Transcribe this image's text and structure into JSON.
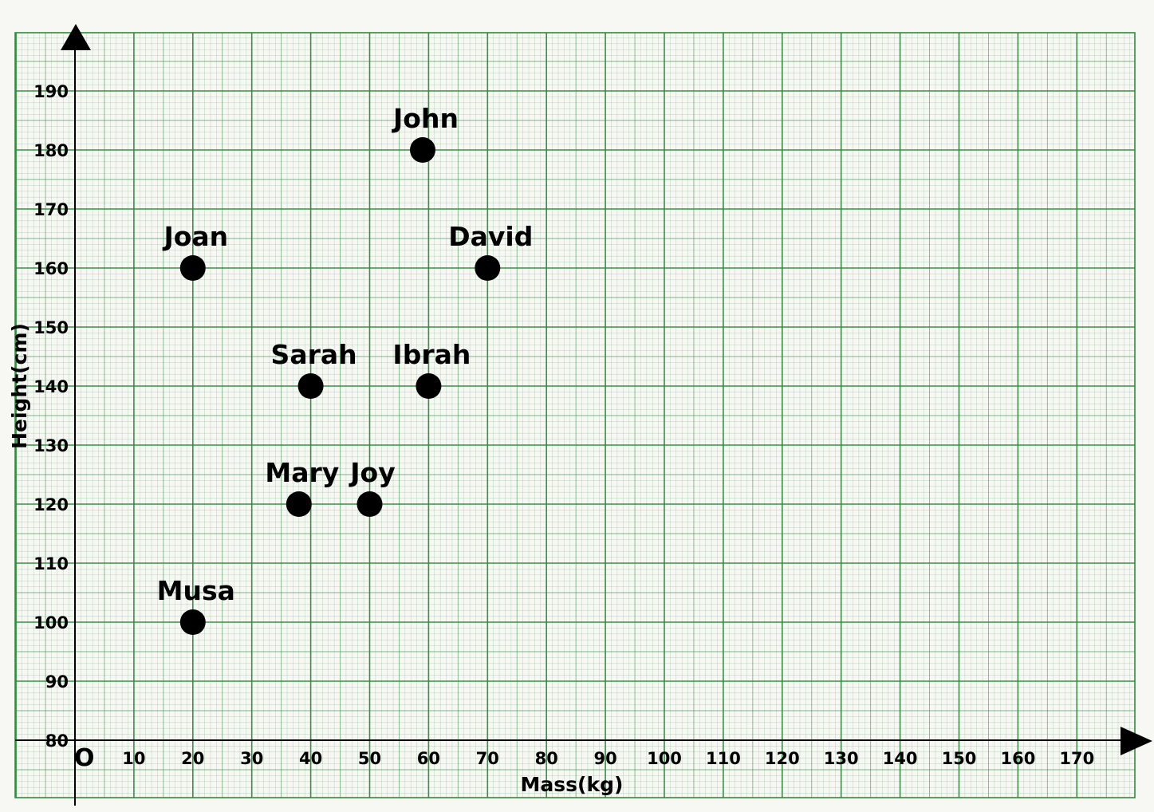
{
  "chart_data": {
    "type": "scatter",
    "title": "",
    "xlabel": "Mass(kg)",
    "ylabel": "Height(cm)",
    "origin_label": "O",
    "xlim": [
      0,
      180
    ],
    "ylim": [
      80,
      200
    ],
    "x_ticks": [
      10,
      20,
      30,
      40,
      50,
      60,
      70,
      80,
      90,
      100,
      110,
      120,
      130,
      140,
      150,
      160,
      170
    ],
    "y_ticks": [
      80,
      90,
      100,
      110,
      120,
      130,
      140,
      150,
      160,
      170,
      180,
      190
    ],
    "grid": true,
    "grid_color": "#2f8a3d",
    "paper_color": "#f7f7f4",
    "points": [
      {
        "label": "John",
        "x": 59,
        "y": 180
      },
      {
        "label": "Joan",
        "x": 20,
        "y": 160
      },
      {
        "label": "David",
        "x": 70,
        "y": 160
      },
      {
        "label": "Sarah",
        "x": 40,
        "y": 140
      },
      {
        "label": "Ibrah",
        "x": 60,
        "y": 140
      },
      {
        "label": "Mary",
        "x": 38,
        "y": 120
      },
      {
        "label": "Joy",
        "x": 50,
        "y": 120
      },
      {
        "label": "Musa",
        "x": 20,
        "y": 100
      }
    ]
  }
}
